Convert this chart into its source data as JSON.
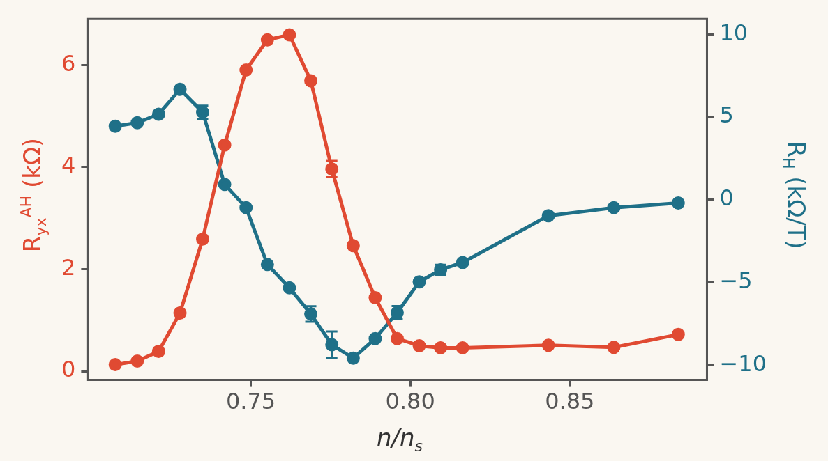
{
  "chart_data": {
    "type": "line",
    "xlabel": "n/n$_{s}$",
    "ylabel": "R$_{yx}$$^{AH}$ (kΩ)",
    "y2label": "R$_{H}$ (kΩ/T)",
    "x": [
      0.7075,
      0.7144,
      0.7211,
      0.7278,
      0.7349,
      0.7418,
      0.7485,
      0.7552,
      0.7621,
      0.7688,
      0.7754,
      0.7821,
      0.789,
      0.7959,
      0.8028,
      0.8095,
      0.8164,
      0.8433,
      0.8638,
      0.884
    ],
    "series": [
      {
        "color": "#e04a32",
        "values": [
          0.13,
          0.2,
          0.39,
          1.14,
          2.59,
          4.43,
          5.9,
          6.49,
          6.59,
          5.69,
          3.96,
          2.46,
          1.44,
          0.64,
          0.5,
          0.46,
          0.46,
          0.51,
          0.47,
          0.72
        ],
        "errors": [
          null,
          null,
          null,
          null,
          null,
          null,
          null,
          null,
          null,
          null,
          0.16,
          null,
          null,
          null,
          null,
          null,
          null,
          null,
          null,
          null
        ]
      },
      {
        "color": "#1f7088",
        "axis": "y2",
        "values": [
          4.44,
          4.65,
          5.17,
          6.67,
          5.29,
          0.93,
          -0.48,
          -3.92,
          -5.33,
          -6.91,
          -8.77,
          -9.58,
          -8.4,
          -6.83,
          -4.97,
          -4.24,
          -3.8,
          -0.97,
          -0.48,
          -0.2
        ],
        "errors": [
          null,
          null,
          null,
          null,
          0.4,
          null,
          null,
          null,
          null,
          0.47,
          0.8,
          null,
          null,
          0.4,
          null,
          0.3,
          null,
          null,
          null,
          null
        ]
      }
    ],
    "xlim": [
      0.699,
      0.893
    ],
    "xticks": [
      0.75,
      {
        "value": 0.8,
        "label": "0.80"
      },
      0.85
    ],
    "ylim": [
      -0.17,
      6.9
    ],
    "yticks": [
      0,
      2,
      4,
      6
    ],
    "y2lim": [
      -10.9,
      10.93
    ],
    "y2ticks": [
      {
        "value": -10,
        "label": "−10"
      },
      {
        "value": -5,
        "label": "−5"
      },
      0,
      5,
      10
    ],
    "marker": "circle",
    "line_style": "solid",
    "grid": false,
    "legend": false
  }
}
